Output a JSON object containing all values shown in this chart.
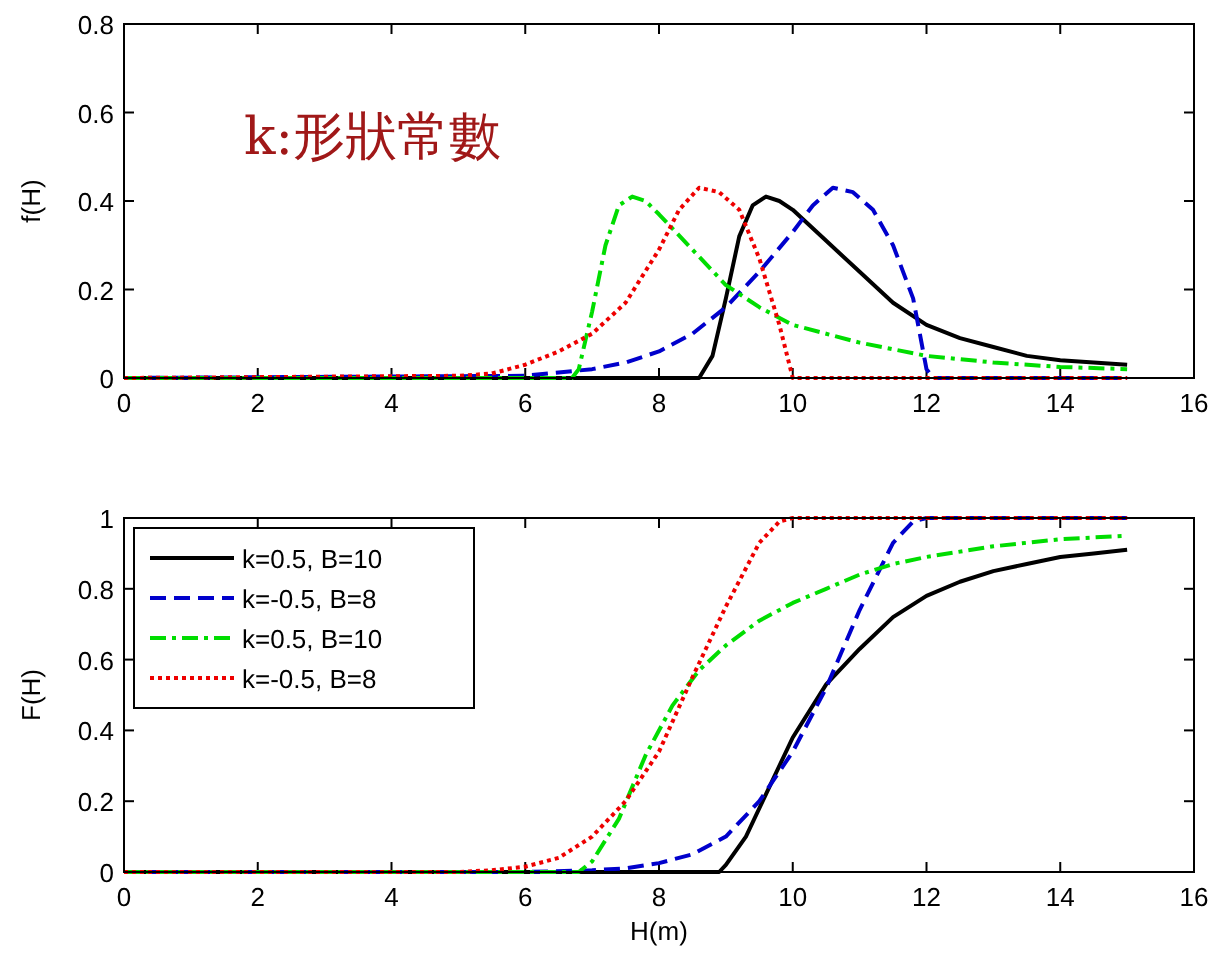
{
  "chart_data": [
    {
      "type": "line",
      "ylabel": "f(H)",
      "xlim": [
        0,
        16
      ],
      "xticks": [
        0,
        2,
        4,
        6,
        8,
        10,
        12,
        14,
        16
      ],
      "ylim": [
        0,
        0.8
      ],
      "yticks": [
        0,
        0.2,
        0.4,
        0.6,
        0.8
      ],
      "legend": false,
      "annotations": [
        "k:形狀常數"
      ],
      "series": [
        {
          "color": "#000000",
          "line_style": "solid",
          "x": [
            0,
            8.6,
            8.8,
            9.0,
            9.2,
            9.4,
            9.6,
            9.8,
            10,
            10.5,
            11,
            11.5,
            12,
            12.5,
            13,
            13.5,
            14,
            14.5,
            15
          ],
          "values": [
            0,
            0,
            0.05,
            0.18,
            0.32,
            0.39,
            0.41,
            0.4,
            0.38,
            0.31,
            0.24,
            0.17,
            0.12,
            0.09,
            0.07,
            0.05,
            0.04,
            0.035,
            0.03
          ]
        },
        {
          "color": "#0000cc",
          "line_style": "dashed",
          "x": [
            0,
            6,
            7,
            7.5,
            8,
            8.5,
            9,
            9.5,
            10,
            10.3,
            10.6,
            10.9,
            11.2,
            11.5,
            11.8,
            12,
            12.1,
            15
          ],
          "values": [
            0,
            0.005,
            0.02,
            0.035,
            0.06,
            0.1,
            0.16,
            0.24,
            0.33,
            0.39,
            0.43,
            0.42,
            0.38,
            0.3,
            0.18,
            0.02,
            0,
            0
          ]
        },
        {
          "color": "#00dd00",
          "line_style": "dashdot",
          "x": [
            0,
            6.7,
            6.8,
            7.0,
            7.2,
            7.4,
            7.6,
            7.8,
            8,
            8.5,
            9,
            9.5,
            10,
            10.5,
            11,
            11.5,
            12,
            13,
            14,
            15
          ],
          "values": [
            0,
            0,
            0.02,
            0.15,
            0.3,
            0.39,
            0.41,
            0.4,
            0.37,
            0.29,
            0.21,
            0.16,
            0.12,
            0.1,
            0.08,
            0.065,
            0.05,
            0.035,
            0.025,
            0.02
          ]
        },
        {
          "color": "#ee0000",
          "line_style": "dotted",
          "x": [
            0,
            5,
            5.5,
            6,
            6.5,
            7,
            7.5,
            8,
            8.3,
            8.6,
            8.9,
            9.2,
            9.5,
            9.8,
            10,
            15
          ],
          "values": [
            0,
            0.005,
            0.01,
            0.03,
            0.06,
            0.1,
            0.17,
            0.29,
            0.38,
            0.43,
            0.42,
            0.38,
            0.27,
            0.12,
            0,
            0
          ]
        }
      ]
    },
    {
      "type": "line",
      "xlabel": "H(m)",
      "ylabel": "F(H)",
      "xlim": [
        0,
        16
      ],
      "xticks": [
        0,
        2,
        4,
        6,
        8,
        10,
        12,
        14,
        16
      ],
      "ylim": [
        0,
        1
      ],
      "yticks": [
        0,
        0.2,
        0.4,
        0.6,
        0.8,
        1
      ],
      "legend": "top left",
      "series": [
        {
          "name": "k=0.5, B=10",
          "color": "#000000",
          "line_style": "solid",
          "x": [
            0,
            8.9,
            9.0,
            9.3,
            9.6,
            10,
            10.5,
            11,
            11.5,
            12,
            12.5,
            13,
            13.5,
            14,
            14.5,
            15
          ],
          "values": [
            0,
            0,
            0.02,
            0.1,
            0.22,
            0.38,
            0.53,
            0.63,
            0.72,
            0.78,
            0.82,
            0.85,
            0.87,
            0.89,
            0.9,
            0.91
          ]
        },
        {
          "name": "k=-0.5, B=8",
          "color": "#0000cc",
          "line_style": "dashed",
          "x": [
            0,
            6,
            7,
            7.5,
            8,
            8.5,
            9,
            9.5,
            10,
            10.5,
            11,
            11.5,
            11.8,
            12,
            15
          ],
          "values": [
            0,
            0,
            0.005,
            0.01,
            0.025,
            0.05,
            0.1,
            0.2,
            0.34,
            0.52,
            0.74,
            0.93,
            0.99,
            1,
            1
          ]
        },
        {
          "name": "k=0.5, B=10",
          "color": "#00dd00",
          "line_style": "dashdot",
          "x": [
            0,
            6.8,
            7,
            7.4,
            7.8,
            8.2,
            8.6,
            9,
            9.5,
            10,
            10.5,
            11,
            11.5,
            12,
            13,
            14,
            15
          ],
          "values": [
            0,
            0,
            0.03,
            0.15,
            0.33,
            0.47,
            0.57,
            0.64,
            0.71,
            0.76,
            0.8,
            0.84,
            0.87,
            0.89,
            0.92,
            0.94,
            0.95
          ]
        },
        {
          "name": "k=-0.5, B=8",
          "color": "#ee0000",
          "line_style": "dotted",
          "x": [
            0,
            5,
            5.5,
            6,
            6.5,
            7,
            7.5,
            8,
            8.5,
            9,
            9.5,
            9.8,
            10,
            15
          ],
          "values": [
            0,
            0,
            0.005,
            0.015,
            0.04,
            0.1,
            0.2,
            0.34,
            0.55,
            0.75,
            0.93,
            0.99,
            1,
            1
          ]
        }
      ]
    }
  ]
}
